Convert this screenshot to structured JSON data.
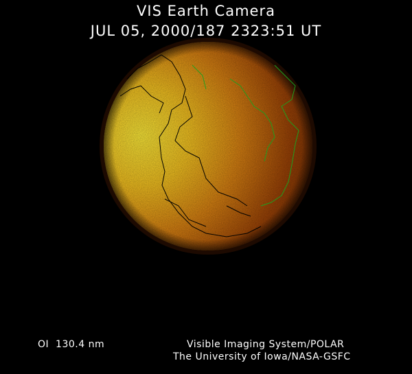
{
  "header": {
    "title": "VIS Earth Camera",
    "timestamp": "JUL 05, 2000/187 2323:51 UT"
  },
  "footer": {
    "filter": "OI  130.4 nm",
    "credit_line1": "Visible Imaging System/POLAR",
    "credit_line2": "The University of Iowa/NASA-GSFC"
  },
  "colors": {
    "background": "#000000",
    "bright_limb": "#f8e030",
    "mid": "#d07010",
    "dark_side": "#6a2a04",
    "coastline_day": "#000000",
    "coastline_night": "#1fa01f"
  }
}
